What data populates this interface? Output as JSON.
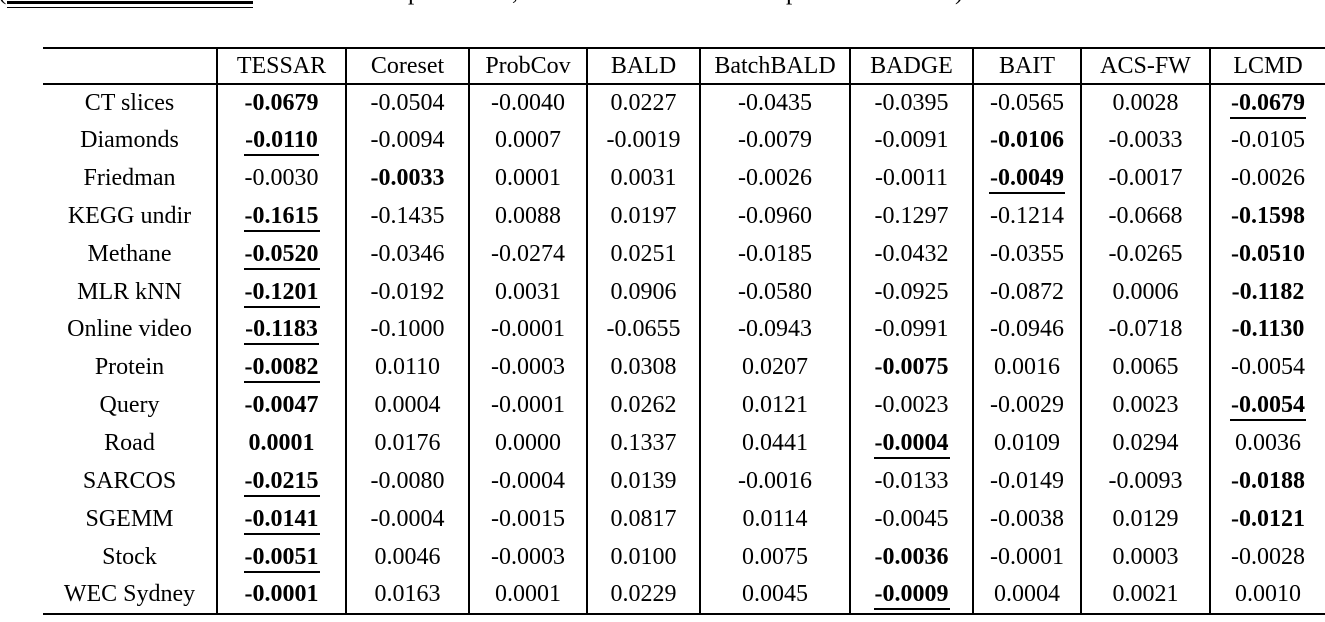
{
  "page": {
    "background": "#ffffff",
    "text_color": "#000000"
  },
  "clipped_caption": {
    "open_paren": "(",
    "p_fragment_1": "p",
    "comma_fragment": ",",
    "p_fragment_2": "p",
    "close_paren": ")"
  },
  "table": {
    "corner_label": "",
    "columns": [
      "TESSAR",
      "Coreset",
      "ProbCov",
      "BALD",
      "BatchBALD",
      "BADGE",
      "BAIT",
      "ACS-FW",
      "LCMD"
    ],
    "rows": [
      {
        "label": "CT slices",
        "cells": [
          {
            "v": "-0.0679",
            "s": "b"
          },
          {
            "v": "-0.0504",
            "s": ""
          },
          {
            "v": "-0.0040",
            "s": ""
          },
          {
            "v": "0.0227",
            "s": ""
          },
          {
            "v": "-0.0435",
            "s": ""
          },
          {
            "v": "-0.0395",
            "s": ""
          },
          {
            "v": "-0.0565",
            "s": ""
          },
          {
            "v": "0.0028",
            "s": ""
          },
          {
            "v": "-0.0679",
            "s": "bu"
          }
        ]
      },
      {
        "label": "Diamonds",
        "cells": [
          {
            "v": "-0.0110",
            "s": "bu"
          },
          {
            "v": "-0.0094",
            "s": ""
          },
          {
            "v": "0.0007",
            "s": ""
          },
          {
            "v": "-0.0019",
            "s": ""
          },
          {
            "v": "-0.0079",
            "s": ""
          },
          {
            "v": "-0.0091",
            "s": ""
          },
          {
            "v": "-0.0106",
            "s": "b"
          },
          {
            "v": "-0.0033",
            "s": ""
          },
          {
            "v": "-0.0105",
            "s": ""
          }
        ]
      },
      {
        "label": "Friedman",
        "cells": [
          {
            "v": "-0.0030",
            "s": ""
          },
          {
            "v": "-0.0033",
            "s": "b"
          },
          {
            "v": "0.0001",
            "s": ""
          },
          {
            "v": "0.0031",
            "s": ""
          },
          {
            "v": "-0.0026",
            "s": ""
          },
          {
            "v": "-0.0011",
            "s": ""
          },
          {
            "v": "-0.0049",
            "s": "bu"
          },
          {
            "v": "-0.0017",
            "s": ""
          },
          {
            "v": "-0.0026",
            "s": ""
          }
        ]
      },
      {
        "label": "KEGG undir",
        "cells": [
          {
            "v": "-0.1615",
            "s": "bu"
          },
          {
            "v": "-0.1435",
            "s": ""
          },
          {
            "v": "0.0088",
            "s": ""
          },
          {
            "v": "0.0197",
            "s": ""
          },
          {
            "v": "-0.0960",
            "s": ""
          },
          {
            "v": "-0.1297",
            "s": ""
          },
          {
            "v": "-0.1214",
            "s": ""
          },
          {
            "v": "-0.0668",
            "s": ""
          },
          {
            "v": "-0.1598",
            "s": "b"
          }
        ]
      },
      {
        "label": "Methane",
        "cells": [
          {
            "v": "-0.0520",
            "s": "bu"
          },
          {
            "v": "-0.0346",
            "s": ""
          },
          {
            "v": "-0.0274",
            "s": ""
          },
          {
            "v": "0.0251",
            "s": ""
          },
          {
            "v": "-0.0185",
            "s": ""
          },
          {
            "v": "-0.0432",
            "s": ""
          },
          {
            "v": "-0.0355",
            "s": ""
          },
          {
            "v": "-0.0265",
            "s": ""
          },
          {
            "v": "-0.0510",
            "s": "b"
          }
        ]
      },
      {
        "label": "MLR kNN",
        "cells": [
          {
            "v": "-0.1201",
            "s": "bu"
          },
          {
            "v": "-0.0192",
            "s": ""
          },
          {
            "v": "0.0031",
            "s": ""
          },
          {
            "v": "0.0906",
            "s": ""
          },
          {
            "v": "-0.0580",
            "s": ""
          },
          {
            "v": "-0.0925",
            "s": ""
          },
          {
            "v": "-0.0872",
            "s": ""
          },
          {
            "v": "0.0006",
            "s": ""
          },
          {
            "v": "-0.1182",
            "s": "b"
          }
        ]
      },
      {
        "label": "Online video",
        "cells": [
          {
            "v": "-0.1183",
            "s": "bu"
          },
          {
            "v": "-0.1000",
            "s": ""
          },
          {
            "v": "-0.0001",
            "s": ""
          },
          {
            "v": "-0.0655",
            "s": ""
          },
          {
            "v": "-0.0943",
            "s": ""
          },
          {
            "v": "-0.0991",
            "s": ""
          },
          {
            "v": "-0.0946",
            "s": ""
          },
          {
            "v": "-0.0718",
            "s": ""
          },
          {
            "v": "-0.1130",
            "s": "b"
          }
        ]
      },
      {
        "label": "Protein",
        "cells": [
          {
            "v": "-0.0082",
            "s": "bu"
          },
          {
            "v": "0.0110",
            "s": ""
          },
          {
            "v": "-0.0003",
            "s": ""
          },
          {
            "v": "0.0308",
            "s": ""
          },
          {
            "v": "0.0207",
            "s": ""
          },
          {
            "v": "-0.0075",
            "s": "b"
          },
          {
            "v": "0.0016",
            "s": ""
          },
          {
            "v": "0.0065",
            "s": ""
          },
          {
            "v": "-0.0054",
            "s": ""
          }
        ]
      },
      {
        "label": "Query",
        "cells": [
          {
            "v": "-0.0047",
            "s": "b"
          },
          {
            "v": "0.0004",
            "s": ""
          },
          {
            "v": "-0.0001",
            "s": ""
          },
          {
            "v": "0.0262",
            "s": ""
          },
          {
            "v": "0.0121",
            "s": ""
          },
          {
            "v": "-0.0023",
            "s": ""
          },
          {
            "v": "-0.0029",
            "s": ""
          },
          {
            "v": "0.0023",
            "s": ""
          },
          {
            "v": "-0.0054",
            "s": "bu"
          }
        ]
      },
      {
        "label": "Road",
        "cells": [
          {
            "v": "0.0001",
            "s": "b"
          },
          {
            "v": "0.0176",
            "s": ""
          },
          {
            "v": "0.0000",
            "s": ""
          },
          {
            "v": "0.1337",
            "s": ""
          },
          {
            "v": "0.0441",
            "s": ""
          },
          {
            "v": "-0.0004",
            "s": "bu"
          },
          {
            "v": "0.0109",
            "s": ""
          },
          {
            "v": "0.0294",
            "s": ""
          },
          {
            "v": "0.0036",
            "s": ""
          }
        ]
      },
      {
        "label": "SARCOS",
        "cells": [
          {
            "v": "-0.0215",
            "s": "bu"
          },
          {
            "v": "-0.0080",
            "s": ""
          },
          {
            "v": "-0.0004",
            "s": ""
          },
          {
            "v": "0.0139",
            "s": ""
          },
          {
            "v": "-0.0016",
            "s": ""
          },
          {
            "v": "-0.0133",
            "s": ""
          },
          {
            "v": "-0.0149",
            "s": ""
          },
          {
            "v": "-0.0093",
            "s": ""
          },
          {
            "v": "-0.0188",
            "s": "b"
          }
        ]
      },
      {
        "label": "SGEMM",
        "cells": [
          {
            "v": "-0.0141",
            "s": "bu"
          },
          {
            "v": "-0.0004",
            "s": ""
          },
          {
            "v": "-0.0015",
            "s": ""
          },
          {
            "v": "0.0817",
            "s": ""
          },
          {
            "v": "0.0114",
            "s": ""
          },
          {
            "v": "-0.0045",
            "s": ""
          },
          {
            "v": "-0.0038",
            "s": ""
          },
          {
            "v": "0.0129",
            "s": ""
          },
          {
            "v": "-0.0121",
            "s": "b"
          }
        ]
      },
      {
        "label": "Stock",
        "cells": [
          {
            "v": "-0.0051",
            "s": "bu"
          },
          {
            "v": "0.0046",
            "s": ""
          },
          {
            "v": "-0.0003",
            "s": ""
          },
          {
            "v": "0.0100",
            "s": ""
          },
          {
            "v": "0.0075",
            "s": ""
          },
          {
            "v": "-0.0036",
            "s": "b"
          },
          {
            "v": "-0.0001",
            "s": ""
          },
          {
            "v": "0.0003",
            "s": ""
          },
          {
            "v": "-0.0028",
            "s": ""
          }
        ]
      },
      {
        "label": "WEC Sydney",
        "cells": [
          {
            "v": "-0.0001",
            "s": "b"
          },
          {
            "v": "0.0163",
            "s": ""
          },
          {
            "v": "0.0001",
            "s": ""
          },
          {
            "v": "0.0229",
            "s": ""
          },
          {
            "v": "0.0045",
            "s": ""
          },
          {
            "v": "-0.0009",
            "s": "bu"
          },
          {
            "v": "0.0004",
            "s": ""
          },
          {
            "v": "0.0021",
            "s": ""
          },
          {
            "v": "0.0010",
            "s": ""
          }
        ]
      }
    ]
  }
}
